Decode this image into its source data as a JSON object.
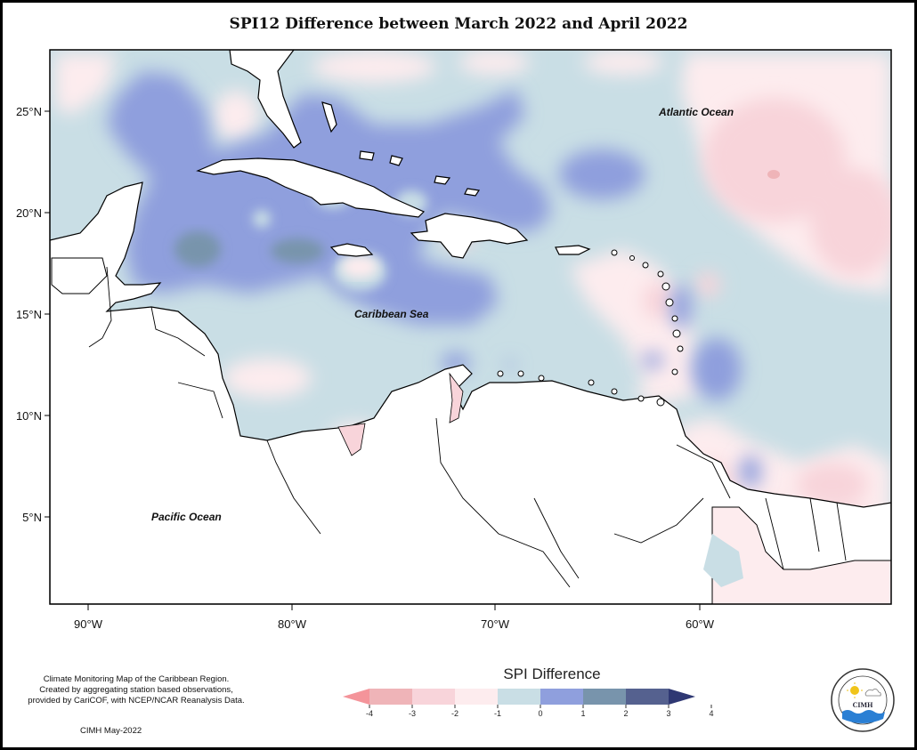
{
  "title": "SPI12 Difference between March 2022 and April 2022",
  "map": {
    "lat_labels": [
      "25°N",
      "20°N",
      "15°N",
      "10°N",
      "5°N"
    ],
    "lon_labels": [
      "90°W",
      "80°W",
      "70°W",
      "60°W"
    ],
    "place_labels": {
      "atlantic": "Atlantic Ocean",
      "caribbean": "Caribbean Sea",
      "pacific": "Pacific Ocean"
    }
  },
  "legend": {
    "title": "SPI Difference",
    "ticks": [
      "-4",
      "-3",
      "-2",
      "-1",
      "0",
      "1",
      "2",
      "3",
      "4"
    ],
    "colors": [
      "#f4949a",
      "#efb4b8",
      "#f8d4da",
      "#fdecee",
      "#c9dee5",
      "#8f9fdd",
      "#7894ac",
      "#55618f",
      "#2f3873"
    ]
  },
  "credit": {
    "line1": "Climate Monitoring Map of the Caribbean Region.",
    "line2": "Created by aggregating station based observations,",
    "line3": "provided by CariCOF, with NCEP/NCAR Reanalysis Data.",
    "date": "CIMH May-2022"
  },
  "logo": {
    "name": "CIMH"
  }
}
